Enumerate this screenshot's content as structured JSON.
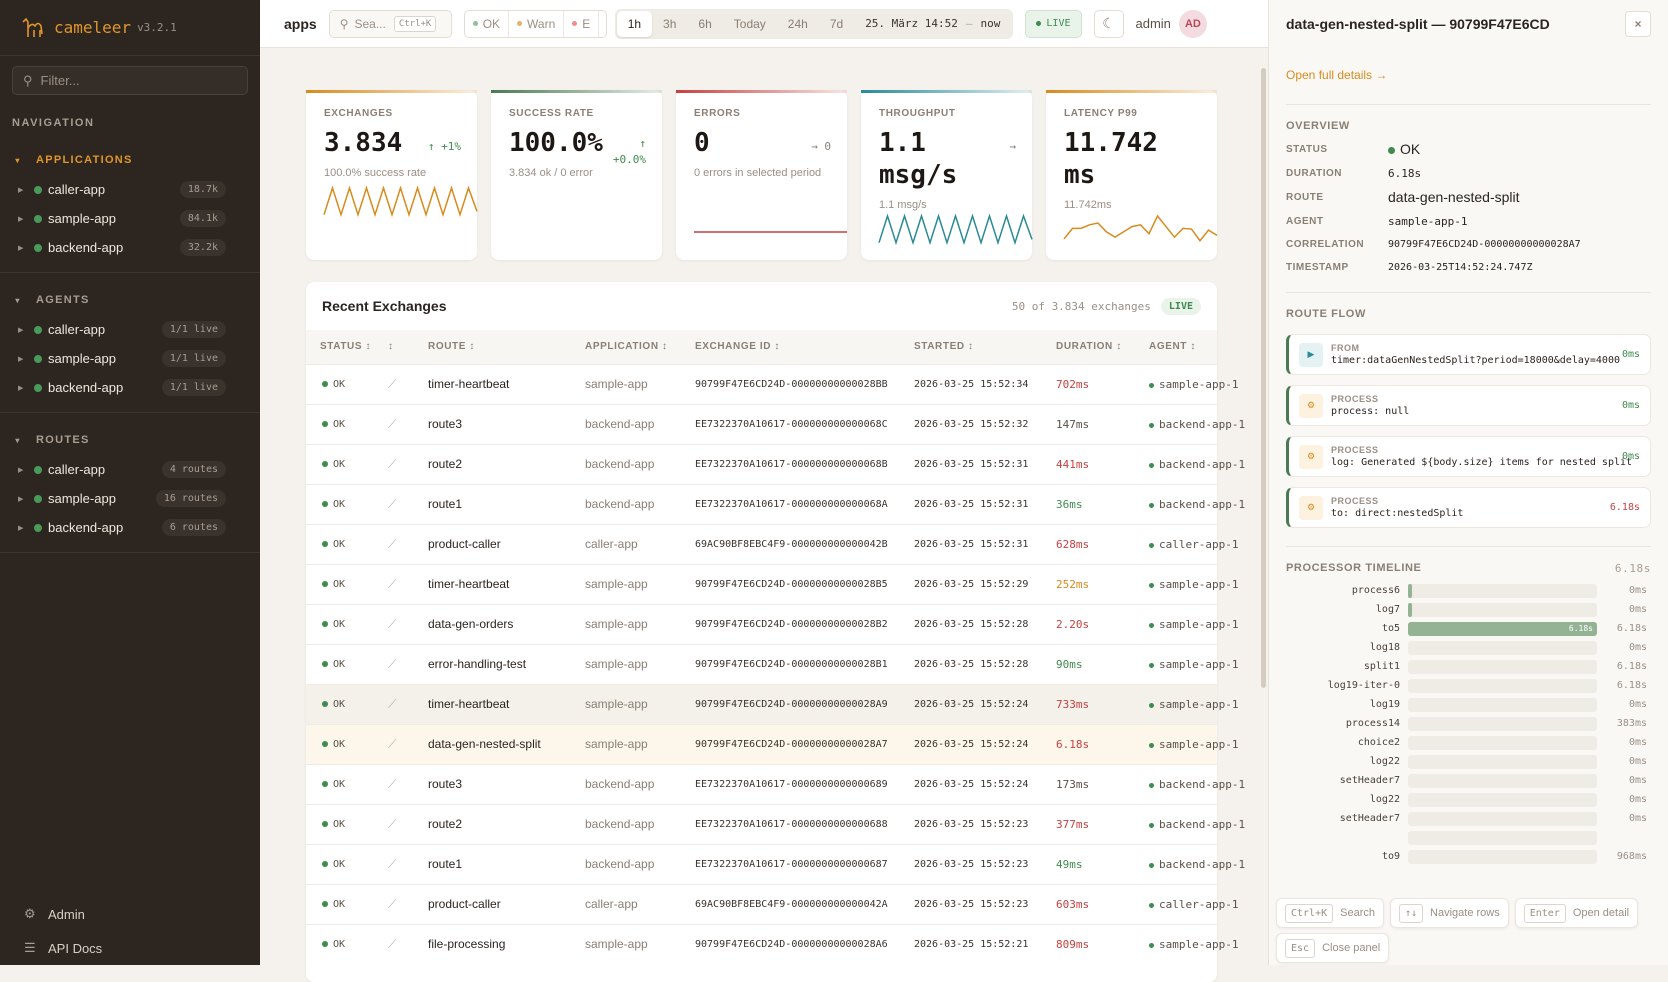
{
  "brand": {
    "name": "cameleer",
    "version": "v3.2.1"
  },
  "sidebar": {
    "filter_placeholder": "Filter...",
    "nav_label": "NAVIGATION",
    "sections": [
      {
        "title": "APPLICATIONS",
        "items": [
          {
            "label": "caller-app",
            "badge": "18.7k"
          },
          {
            "label": "sample-app",
            "badge": "84.1k"
          },
          {
            "label": "backend-app",
            "badge": "32.2k"
          }
        ]
      },
      {
        "title": "AGENTS",
        "items": [
          {
            "label": "caller-app",
            "badge": "1/1 live"
          },
          {
            "label": "sample-app",
            "badge": "1/1 live"
          },
          {
            "label": "backend-app",
            "badge": "1/1 live"
          }
        ]
      },
      {
        "title": "ROUTES",
        "items": [
          {
            "label": "caller-app",
            "badge": "4 routes"
          },
          {
            "label": "sample-app",
            "badge": "16 routes"
          },
          {
            "label": "backend-app",
            "badge": "6 routes"
          }
        ]
      }
    ],
    "footer": [
      {
        "label": "Admin",
        "icon": "gear-icon"
      },
      {
        "label": "API Docs",
        "icon": "list-icon"
      }
    ]
  },
  "topbar": {
    "title": "apps",
    "search_placeholder": "Sea...",
    "search_shortcut": "Ctrl+K",
    "status_filters": [
      {
        "label": "OK",
        "color": "#8fbf94"
      },
      {
        "label": "Warn",
        "color": "#e8b06a"
      },
      {
        "label": "E",
        "color": "#e89090"
      }
    ],
    "ranges": [
      "1h",
      "3h",
      "6h",
      "Today",
      "24h",
      "7d"
    ],
    "active_range": "1h",
    "range_from": "25. März 14:52",
    "range_sep": "—",
    "range_to": "now",
    "live": "LIVE",
    "user": "admin",
    "avatar": "AD"
  },
  "kpis": [
    {
      "title": "EXCHANGES",
      "value": "3.834",
      "trend": "↑ +1%",
      "trend_color": "#3f8a4e",
      "sub": "100.0% success rate",
      "accent": "#d98a1c",
      "spark_color": "#d98a1c",
      "spark": [
        1,
        9,
        1,
        9,
        1,
        9,
        1,
        9,
        1,
        9,
        1,
        9,
        1,
        9,
        1,
        9,
        1,
        9,
        2
      ]
    },
    {
      "title": "SUCCESS RATE",
      "value": "100.0%",
      "trend": "↑\n+0.0%",
      "trend_color": "#3f8a4e",
      "sub": "3.834 ok / 0 error",
      "accent": "#4a7a52",
      "spark_color": "",
      "spark": []
    },
    {
      "title": "ERRORS",
      "value": "0",
      "trend": "→ 0",
      "trend_color": "#8a7f74",
      "sub": "0 errors in selected period",
      "accent": "#c84040",
      "spark_color": "#c84040",
      "spark": [
        0,
        0
      ]
    },
    {
      "title": "THROUGHPUT",
      "value": "1.1 msg/s",
      "trend": "→",
      "trend_color": "#8a7f74",
      "sub": "1.1 msg/s",
      "accent": "#2a8a96",
      "spark_color": "#2a8a96",
      "spark": [
        1,
        9,
        1,
        9,
        1,
        9,
        1,
        9,
        1,
        9,
        1,
        9,
        1,
        9,
        1,
        9,
        1,
        9,
        2
      ]
    },
    {
      "title": "LATENCY P99",
      "value": "11.742 ms",
      "trend": "",
      "trend_color": "#8a7f74",
      "sub": "11.742ms",
      "accent": "#d98a1c",
      "spark_color": "#d98a1c",
      "spark": [
        2,
        5,
        5,
        6,
        6.5,
        4,
        2.5,
        4,
        5.5,
        6,
        3.5,
        8.5,
        5.5,
        2.5,
        5,
        4.8,
        1.5,
        4.5,
        3
      ]
    }
  ],
  "table": {
    "title": "Recent Exchanges",
    "count": "50 of 3.834 exchanges",
    "live": "LIVE",
    "columns": [
      "STATUS ↕",
      "↕",
      "ROUTE ↕",
      "APPLICATION ↕",
      "EXCHANGE ID ↕",
      "STARTED ↕",
      "DURATION ↕",
      "AGENT ↕"
    ],
    "rows": [
      {
        "status": "OK",
        "route": "timer-heartbeat",
        "app": "sample-app",
        "id": "90799F47E6CD24D-00000000000028BB",
        "started": "2026-03-25 15:52:34",
        "duration": "702ms",
        "dur_color": "#c84040",
        "agent": "sample-app-1"
      },
      {
        "status": "OK",
        "route": "route3",
        "app": "backend-app",
        "id": "EE7322370A10617-000000000000068C",
        "started": "2026-03-25 15:52:32",
        "duration": "147ms",
        "dur_color": "#5a5048",
        "agent": "backend-app-1"
      },
      {
        "status": "OK",
        "route": "route2",
        "app": "backend-app",
        "id": "EE7322370A10617-000000000000068B",
        "started": "2026-03-25 15:52:31",
        "duration": "441ms",
        "dur_color": "#c84040",
        "agent": "backend-app-1"
      },
      {
        "status": "OK",
        "route": "route1",
        "app": "backend-app",
        "id": "EE7322370A10617-000000000000068A",
        "started": "2026-03-25 15:52:31",
        "duration": "36ms",
        "dur_color": "#3f8a4e",
        "agent": "backend-app-1"
      },
      {
        "status": "OK",
        "route": "product-caller",
        "app": "caller-app",
        "id": "69AC90BF8EBC4F9-000000000000042B",
        "started": "2026-03-25 15:52:31",
        "duration": "628ms",
        "dur_color": "#c84040",
        "agent": "caller-app-1"
      },
      {
        "status": "OK",
        "route": "timer-heartbeat",
        "app": "sample-app",
        "id": "90799F47E6CD24D-00000000000028B5",
        "started": "2026-03-25 15:52:29",
        "duration": "252ms",
        "dur_color": "#d98a1c",
        "agent": "sample-app-1"
      },
      {
        "status": "OK",
        "route": "data-gen-orders",
        "app": "sample-app",
        "id": "90799F47E6CD24D-00000000000028B2",
        "started": "2026-03-25 15:52:28",
        "duration": "2.20s",
        "dur_color": "#c84040",
        "agent": "sample-app-1"
      },
      {
        "status": "OK",
        "route": "error-handling-test",
        "app": "sample-app",
        "id": "90799F47E6CD24D-00000000000028B1",
        "started": "2026-03-25 15:52:28",
        "duration": "90ms",
        "dur_color": "#3f8a4e",
        "agent": "sample-app-1"
      },
      {
        "status": "OK",
        "route": "timer-heartbeat",
        "app": "sample-app",
        "id": "90799F47E6CD24D-00000000000028A9",
        "started": "2026-03-25 15:52:24",
        "duration": "733ms",
        "dur_color": "#c84040",
        "agent": "sample-app-1"
      },
      {
        "status": "OK",
        "route": "data-gen-nested-split",
        "app": "sample-app",
        "id": "90799F47E6CD24D-00000000000028A7",
        "started": "2026-03-25 15:52:24",
        "duration": "6.18s",
        "dur_color": "#c84040",
        "agent": "sample-app-1"
      },
      {
        "status": "OK",
        "route": "route3",
        "app": "backend-app",
        "id": "EE7322370A10617-0000000000000689",
        "started": "2026-03-25 15:52:24",
        "duration": "173ms",
        "dur_color": "#5a5048",
        "agent": "backend-app-1"
      },
      {
        "status": "OK",
        "route": "route2",
        "app": "backend-app",
        "id": "EE7322370A10617-0000000000000688",
        "started": "2026-03-25 15:52:23",
        "duration": "377ms",
        "dur_color": "#c84040",
        "agent": "backend-app-1"
      },
      {
        "status": "OK",
        "route": "route1",
        "app": "backend-app",
        "id": "EE7322370A10617-0000000000000687",
        "started": "2026-03-25 15:52:23",
        "duration": "49ms",
        "dur_color": "#3f8a4e",
        "agent": "backend-app-1"
      },
      {
        "status": "OK",
        "route": "product-caller",
        "app": "caller-app",
        "id": "69AC90BF8EBC4F9-000000000000042A",
        "started": "2026-03-25 15:52:23",
        "duration": "603ms",
        "dur_color": "#c84040",
        "agent": "caller-app-1"
      },
      {
        "status": "OK",
        "route": "file-processing",
        "app": "sample-app",
        "id": "90799F47E6CD24D-00000000000028A6",
        "started": "2026-03-25 15:52:21",
        "duration": "809ms",
        "dur_color": "#c84040",
        "agent": "sample-app-1"
      }
    ]
  },
  "panel": {
    "title": "data-gen-nested-split — 90799F47E6CD",
    "close": "×",
    "open_details": "Open full details →",
    "overview_label": "OVERVIEW",
    "overview": [
      {
        "key": "STATUS",
        "value": "OK"
      },
      {
        "key": "DURATION",
        "value": "6.18s"
      },
      {
        "key": "ROUTE",
        "value": "data-gen-nested-split"
      },
      {
        "key": "AGENT",
        "value": "sample-app-1"
      },
      {
        "key": "CORRELATION",
        "value": "90799F47E6CD24D-00000000000028A7"
      },
      {
        "key": "TIMESTAMP",
        "value": "2026-03-25T14:52:24.747Z"
      }
    ],
    "flow_label": "ROUTE FLOW",
    "flow": [
      {
        "kind": "FROM",
        "text": "timer:dataGenNestedSplit?period=18000&delay=4000",
        "ms": "0ms",
        "ms_color": "#3f8a4e",
        "icon": "play-icon"
      },
      {
        "kind": "PROCESS",
        "text": "process: null",
        "ms": "0ms",
        "ms_color": "#3f8a4e",
        "icon": "gear-icon"
      },
      {
        "kind": "PROCESS",
        "text": "log: Generated ${body.size} items for nested split",
        "ms": "0ms",
        "ms_color": "#3f8a4e",
        "icon": "gear-icon"
      },
      {
        "kind": "PROCESS",
        "text": "to: direct:nestedSplit",
        "ms": "6.18s",
        "ms_color": "#c84040",
        "icon": "gear-icon"
      }
    ],
    "timeline_label": "PROCESSOR TIMELINE",
    "timeline_total": "6.18s",
    "timeline": [
      {
        "name": "process6",
        "dur": "0ms",
        "fill": 0.02,
        "label": ""
      },
      {
        "name": "log7",
        "dur": "0ms",
        "fill": 0.02,
        "label": ""
      },
      {
        "name": "to5",
        "dur": "6.18s",
        "fill": 1,
        "label": "6.18s"
      },
      {
        "name": "log18",
        "dur": "0ms",
        "fill": 0,
        "label": ""
      },
      {
        "name": "split1",
        "dur": "6.18s",
        "fill": 0,
        "label": ""
      },
      {
        "name": "log19-iter-0",
        "dur": "6.18s",
        "fill": 0,
        "label": ""
      },
      {
        "name": "log19",
        "dur": "0ms",
        "fill": 0,
        "label": ""
      },
      {
        "name": "process14",
        "dur": "383ms",
        "fill": 0,
        "label": ""
      },
      {
        "name": "choice2",
        "dur": "0ms",
        "fill": 0,
        "label": ""
      },
      {
        "name": "log22",
        "dur": "0ms",
        "fill": 0,
        "label": ""
      },
      {
        "name": "setHeader7",
        "dur": "0ms",
        "fill": 0,
        "label": ""
      },
      {
        "name": "log22",
        "dur": "0ms",
        "fill": 0,
        "label": ""
      },
      {
        "name": "setHeader7",
        "dur": "0ms",
        "fill": 0,
        "label": ""
      },
      {
        "name": "",
        "dur": "",
        "fill": 0,
        "label": ""
      },
      {
        "name": "to9",
        "dur": "968ms",
        "fill": 0,
        "label": ""
      }
    ]
  },
  "shortcuts": [
    {
      "key": "Ctrl+K",
      "label": "Search"
    },
    {
      "key": "↑↓",
      "label": "Navigate rows"
    },
    {
      "key": "Enter",
      "label": "Open detail"
    },
    {
      "key": "Esc",
      "label": "Close panel"
    }
  ]
}
